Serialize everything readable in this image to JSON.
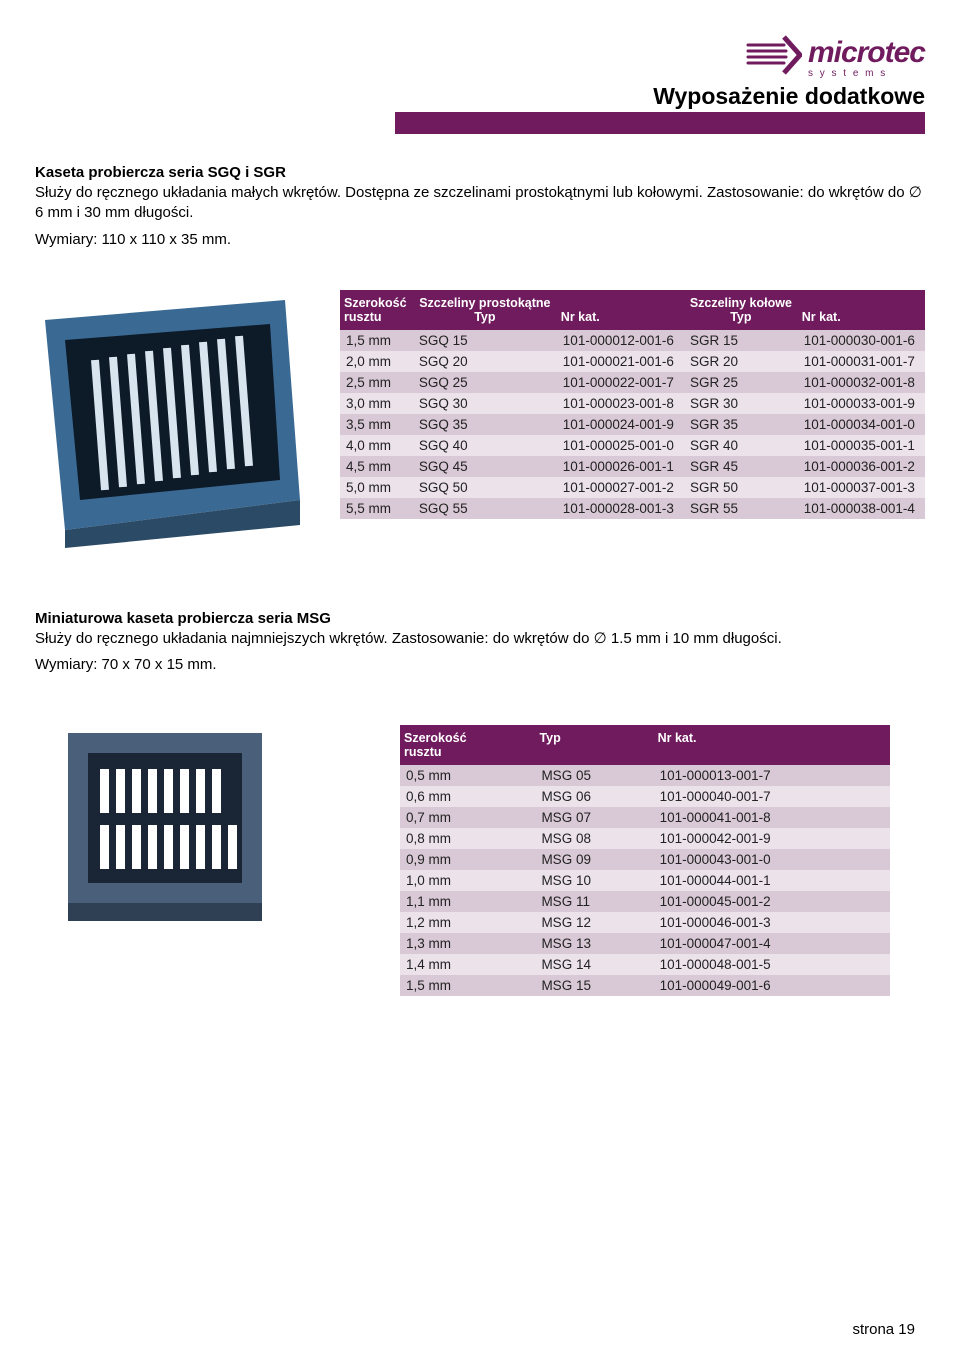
{
  "logo": {
    "text1": "microtec",
    "sub": "s y s t e m s"
  },
  "page_title": "Wyposażenie dodatkowe",
  "section1": {
    "title": "Kaseta probiercza seria SGQ i SGR",
    "line1": "Służy do ręcznego układania małych wkrętów. Dostępna ze szczelinami prostokątnymi lub kołowymi. Zastosowanie: do wkrętów do ∅ 6 mm i 30 mm długości.",
    "line2": "Wymiary: 110 x 110 x 35 mm."
  },
  "table1": {
    "hdr_width1": "Szerokość",
    "hdr_width2": "rusztu",
    "hdr_rect": "Szczeliny prostokątne",
    "hdr_typ": "Typ",
    "hdr_kat": "Nr kat.",
    "hdr_circ": "Szczeliny kołowe",
    "rows": [
      [
        "1,5 mm",
        "SGQ 15",
        "101-000012-001-6",
        "SGR 15",
        "101-000030-001-6"
      ],
      [
        "2,0 mm",
        "SGQ 20",
        "101-000021-001-6",
        "SGR 20",
        "101-000031-001-7"
      ],
      [
        "2,5 mm",
        "SGQ 25",
        "101-000022-001-7",
        "SGR 25",
        "101-000032-001-8"
      ],
      [
        "3,0 mm",
        "SGQ 30",
        "101-000023-001-8",
        "SGR 30",
        "101-000033-001-9"
      ],
      [
        "3,5 mm",
        "SGQ 35",
        "101-000024-001-9",
        "SGR 35",
        "101-000034-001-0"
      ],
      [
        "4,0 mm",
        "SGQ 40",
        "101-000025-001-0",
        "SGR 40",
        "101-000035-001-1"
      ],
      [
        "4,5 mm",
        "SGQ 45",
        "101-000026-001-1",
        "SGR 45",
        "101-000036-001-2"
      ],
      [
        "5,0 mm",
        "SGQ 50",
        "101-000027-001-2",
        "SGR 50",
        "101-000037-001-3"
      ],
      [
        "5,5 mm",
        "SGQ 55",
        "101-000028-001-3",
        "SGR 55",
        "101-000038-001-4"
      ]
    ]
  },
  "section2": {
    "title": "Miniaturowa kaseta probiercza seria MSG",
    "line1": "Służy do ręcznego układania najmniejszych wkrętów. Zastosowanie: do wkrętów do ∅ 1.5 mm i 10 mm długości.",
    "line2": "Wymiary: 70 x 70 x 15 mm."
  },
  "table2": {
    "hdr_width1": "Szerokość",
    "hdr_width2": "rusztu",
    "hdr_typ": "Typ",
    "hdr_kat": "Nr kat.",
    "rows": [
      [
        "0,5 mm",
        "MSG 05",
        "101-000013-001-7"
      ],
      [
        "0,6 mm",
        "MSG 06",
        "101-000040-001-7"
      ],
      [
        "0,7 mm",
        "MSG 07",
        "101-000041-001-8"
      ],
      [
        "0,8 mm",
        "MSG 08",
        "101-000042-001-9"
      ],
      [
        "0,9 mm",
        "MSG 09",
        "101-000043-001-0"
      ],
      [
        "1,0 mm",
        "MSG 10",
        "101-000044-001-1"
      ],
      [
        "1,1 mm",
        "MSG 11",
        "101-000045-001-2"
      ],
      [
        "1,2 mm",
        "MSG 12",
        "101-000046-001-3"
      ],
      [
        "1,3 mm",
        "MSG 13",
        "101-000047-001-4"
      ],
      [
        "1,4 mm",
        "MSG 14",
        "101-000048-001-5"
      ],
      [
        "1,5 mm",
        "MSG 15",
        "101-000049-001-6"
      ]
    ]
  },
  "footer": "strona 19",
  "colors": {
    "brand": "#701b5e",
    "row_odd": "#d9c9d6",
    "row_even": "#ece2ea",
    "cassette_blue_dark": "#2b5578",
    "cassette_blue_light": "#5a8db5",
    "cassette2_body": "#2a3a4f",
    "cassette2_slot": "#ffffff"
  }
}
